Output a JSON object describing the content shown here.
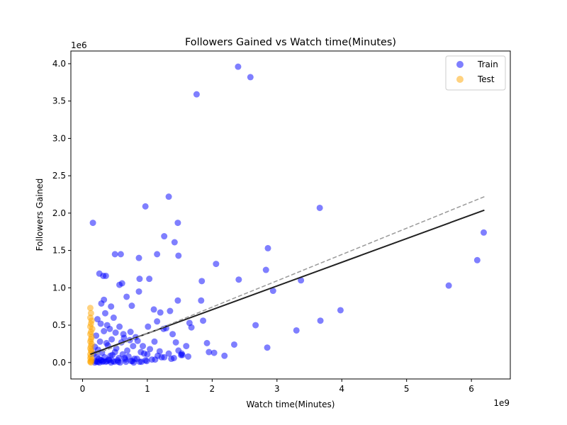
{
  "chart_data": {
    "type": "scatter",
    "title": "Followers Gained vs Watch time(Minutes)",
    "xlabel": "Watch time(Minutes)",
    "ylabel": "Followers Gained",
    "x_offset_label": "1e9",
    "y_offset_label": "1e6",
    "x_ticks": [
      0,
      1,
      2,
      3,
      4,
      5,
      6
    ],
    "x_tick_labels": [
      "0",
      "1",
      "2",
      "3",
      "4",
      "5",
      "6"
    ],
    "y_ticks": [
      0.0,
      0.5,
      1.0,
      1.5,
      2.0,
      2.5,
      3.0,
      3.5,
      4.0
    ],
    "y_tick_labels": [
      "0.0",
      "0.5",
      "1.0",
      "1.5",
      "2.0",
      "2.5",
      "3.0",
      "3.5",
      "4.0"
    ],
    "xlim": [
      -0.18,
      6.6
    ],
    "ylim": [
      -0.22,
      4.17
    ],
    "legend_position": "upper right",
    "series": [
      {
        "name": "Train",
        "color": "#0000ff",
        "alpha": 0.5,
        "x": [
          2.4,
          2.59,
          1.76,
          1.33,
          0.97,
          3.66,
          1.47,
          6.19,
          0.16,
          1.26,
          1.42,
          2.86,
          1.15,
          0.5,
          0.59,
          1.48,
          6.09,
          0.87,
          2.06,
          1.84,
          0.26,
          2.83,
          2.41,
          0.32,
          0.36,
          5.65,
          0.88,
          1.03,
          3.37,
          0.61,
          0.57,
          2.94,
          0.87,
          0.68,
          1.83,
          1.47,
          0.33,
          3.98,
          0.76,
          0.44,
          1.35,
          1.2,
          1.1,
          0.48,
          1.86,
          3.67,
          0.29,
          1.15,
          2.67,
          1.65,
          0.38,
          1.29,
          1.01,
          1.68,
          3.3,
          1.39,
          1.25,
          1.6,
          0.73,
          0.63,
          0.82,
          1.11,
          1.92,
          1.44,
          2.34,
          2.85,
          1.95,
          2.03,
          2.19,
          1.48,
          1.53,
          0.23,
          0.28,
          0.35,
          0.42,
          0.51,
          0.57,
          0.64,
          0.74,
          0.85,
          0.93,
          1.04,
          1.19,
          1.33,
          1.54,
          1.63,
          0.21,
          0.27,
          0.33,
          0.39,
          0.45,
          0.52,
          0.6,
          0.69,
          0.78,
          0.9,
          1.0,
          1.16,
          1.26,
          1.41,
          0.19,
          0.24,
          0.3,
          0.37,
          0.43,
          0.5,
          0.56,
          0.62,
          0.71,
          0.8,
          0.95,
          1.07,
          1.22,
          1.37,
          1.52,
          0.18,
          0.22,
          0.25,
          0.29,
          0.34,
          0.4,
          0.46,
          0.54,
          0.65,
          0.75,
          0.84,
          0.97,
          1.12,
          0.2,
          0.24,
          0.28,
          0.32,
          0.36,
          0.41,
          0.47,
          0.55,
          0.66,
          0.77,
          0.88,
          0.99,
          0.19,
          0.22,
          0.26,
          0.31,
          0.38,
          0.44,
          0.49,
          0.58,
          0.67,
          0.79,
          0.91
        ],
        "y": [
          3.96,
          3.82,
          3.59,
          2.22,
          2.09,
          2.07,
          1.87,
          1.74,
          1.87,
          1.69,
          1.61,
          1.53,
          1.45,
          1.45,
          1.45,
          1.43,
          1.37,
          1.4,
          1.32,
          1.09,
          1.19,
          1.24,
          1.11,
          1.16,
          1.16,
          1.03,
          1.12,
          1.12,
          1.1,
          1.06,
          1.04,
          0.96,
          0.95,
          0.88,
          0.83,
          0.83,
          0.84,
          0.7,
          0.76,
          0.75,
          0.69,
          0.67,
          0.71,
          0.6,
          0.56,
          0.56,
          0.79,
          0.55,
          0.5,
          0.53,
          0.5,
          0.46,
          0.48,
          0.47,
          0.43,
          0.38,
          0.45,
          0.22,
          0.3,
          0.38,
          0.34,
          0.28,
          0.26,
          0.27,
          0.24,
          0.2,
          0.14,
          0.13,
          0.09,
          0.16,
          0.12,
          0.58,
          0.52,
          0.66,
          0.45,
          0.4,
          0.48,
          0.33,
          0.41,
          0.29,
          0.22,
          0.18,
          0.15,
          0.12,
          0.1,
          0.08,
          0.36,
          0.28,
          0.42,
          0.23,
          0.31,
          0.19,
          0.27,
          0.16,
          0.22,
          0.14,
          0.11,
          0.09,
          0.07,
          0.06,
          0.21,
          0.17,
          0.13,
          0.26,
          0.09,
          0.14,
          0.06,
          0.11,
          0.08,
          0.05,
          0.12,
          0.04,
          0.07,
          0.05,
          0.1,
          0.12,
          0.08,
          0.05,
          0.03,
          0.07,
          0.04,
          0.1,
          0.03,
          0.06,
          0.02,
          0.05,
          0.03,
          0.04,
          0.02,
          0.01,
          0.03,
          0.02,
          0.01,
          0.03,
          0.02,
          0.01,
          0.04,
          0.02,
          0.01,
          0.02,
          0.0,
          0.01,
          0.0,
          0.01,
          0.02,
          0.0,
          0.01,
          0.0,
          0.01,
          0.0,
          0.01
        ]
      },
      {
        "name": "Test",
        "color": "#ffa500",
        "alpha": 0.5,
        "x": [
          0.12,
          0.13,
          0.12,
          0.14,
          0.13,
          0.12,
          0.15,
          0.13,
          0.12,
          0.14,
          0.13,
          0.12,
          0.14,
          0.13,
          0.12,
          0.13,
          0.14,
          0.12,
          0.13,
          0.12,
          0.14,
          0.13,
          0.12,
          0.13
        ],
        "y": [
          0.73,
          0.66,
          0.6,
          0.56,
          0.52,
          0.48,
          0.45,
          0.41,
          0.38,
          0.34,
          0.31,
          0.28,
          0.25,
          0.22,
          0.19,
          0.16,
          0.14,
          0.11,
          0.08,
          0.06,
          0.04,
          0.02,
          0.01,
          0.0
        ]
      }
    ],
    "fit_lines": [
      {
        "style": "solid",
        "color": "#222222",
        "x": [
          0.12,
          6.2
        ],
        "y": [
          0.11,
          2.04
        ]
      },
      {
        "style": "dashed",
        "color": "#999999",
        "x": [
          0.12,
          6.2
        ],
        "y": [
          0.08,
          2.22
        ]
      }
    ]
  }
}
